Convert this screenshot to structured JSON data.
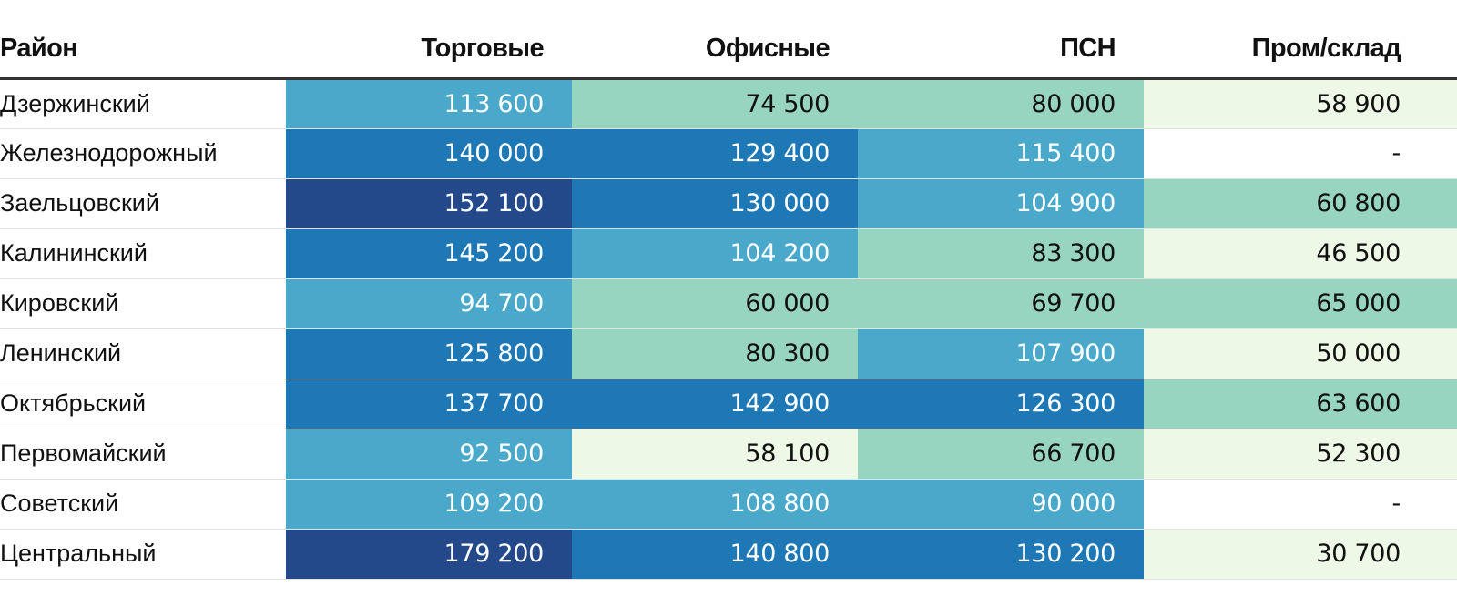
{
  "chart_data": {
    "type": "table",
    "title": "",
    "columns": [
      "Район",
      "Торговые",
      "Офисные",
      "ПСН",
      "Пром/склад"
    ],
    "rows": [
      {
        "district": "Дзержинский",
        "values": [
          113600,
          74500,
          80000,
          58900
        ],
        "labels": [
          "113 600",
          "74 500",
          "80 000",
          "58 900"
        ]
      },
      {
        "district": "Железнодорожный",
        "values": [
          140000,
          129400,
          115400,
          null
        ],
        "labels": [
          "140 000",
          "129 400",
          "115 400",
          "-"
        ]
      },
      {
        "district": "Заельцовский",
        "values": [
          152100,
          130000,
          104900,
          60800
        ],
        "labels": [
          "152 100",
          "130 000",
          "104 900",
          "60 800"
        ]
      },
      {
        "district": "Калининский",
        "values": [
          145200,
          104200,
          83300,
          46500
        ],
        "labels": [
          "145 200",
          "104 200",
          "83 300",
          "46 500"
        ]
      },
      {
        "district": "Кировский",
        "values": [
          94700,
          60000,
          69700,
          65000
        ],
        "labels": [
          "94 700",
          "60 000",
          "69 700",
          "65 000"
        ]
      },
      {
        "district": "Ленинский",
        "values": [
          125800,
          80300,
          107900,
          50000
        ],
        "labels": [
          "125 800",
          "80 300",
          "107 900",
          "50 000"
        ]
      },
      {
        "district": "Октябрьский",
        "values": [
          137700,
          142900,
          126300,
          63600
        ],
        "labels": [
          "137 700",
          "142 900",
          "126 300",
          "63 600"
        ]
      },
      {
        "district": "Первомайский",
        "values": [
          92500,
          58100,
          66700,
          52300
        ],
        "labels": [
          "92 500",
          "58 100",
          "66 700",
          "52 300"
        ]
      },
      {
        "district": "Советский",
        "values": [
          109200,
          108800,
          90000,
          null
        ],
        "labels": [
          "109 200",
          "108 800",
          "90 000",
          "-"
        ]
      },
      {
        "district": "Центральный",
        "values": [
          179200,
          140800,
          130200,
          30700
        ],
        "labels": [
          "179 200",
          "140 800",
          "130 200",
          "30 700"
        ]
      }
    ],
    "color_scale": {
      "thresholds": [
        60000,
        90000,
        120000,
        150000
      ],
      "colors": [
        "#edf8e6",
        "#97d5c0",
        "#4aa9cb",
        "#1e78b5",
        "#23498b"
      ],
      "missing_color": "#ffffff"
    }
  }
}
